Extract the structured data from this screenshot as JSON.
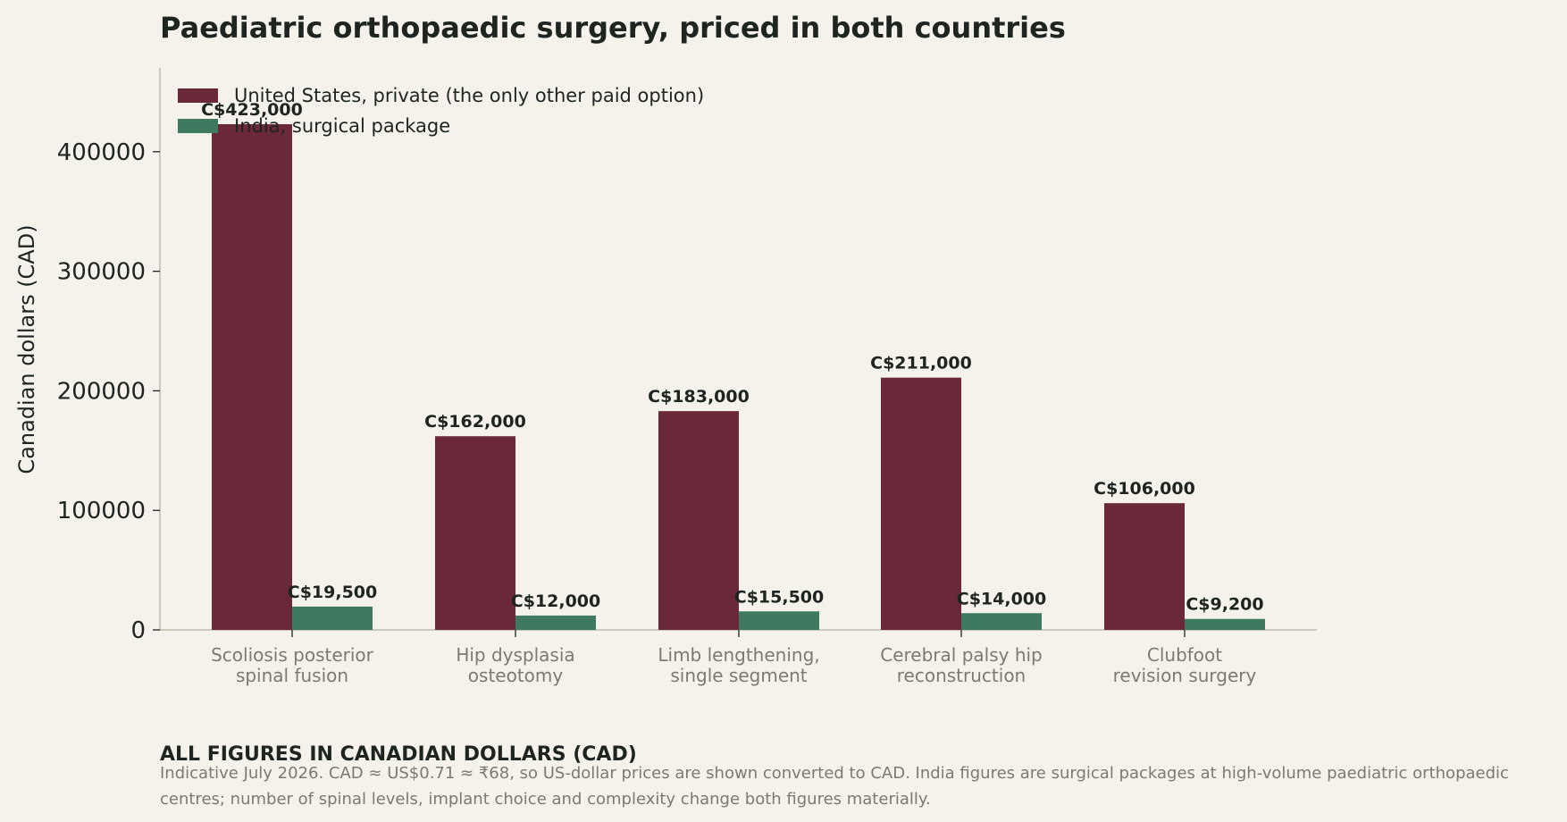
{
  "chart_data": {
    "type": "bar",
    "title": "Paediatric orthopaedic surgery, priced in both countries",
    "xlabel": "",
    "ylabel": "Canadian dollars (CAD)",
    "ylim": [
      0,
      470000
    ],
    "yticks": [
      "0",
      "100000",
      "200000",
      "300000",
      "400000"
    ],
    "ytick_values": [
      0,
      100000,
      200000,
      300000,
      400000
    ],
    "categories": [
      [
        "Scoliosis posterior",
        "spinal fusion"
      ],
      [
        "Hip dysplasia",
        "osteotomy"
      ],
      [
        "Limb lengthening,",
        "single segment"
      ],
      [
        "Cerebral palsy hip",
        "reconstruction"
      ],
      [
        "Clubfoot",
        "revision surgery"
      ]
    ],
    "series": [
      {
        "name": "United States, private (the only other paid option)",
        "color": "#6b2838",
        "values": [
          423000,
          162000,
          183000,
          211000,
          106000
        ],
        "labels": [
          "C$423,000",
          "C$162,000",
          "C$183,000",
          "C$211,000",
          "C$106,000"
        ]
      },
      {
        "name": "India, surgical package",
        "color": "#3d7a5f",
        "values": [
          19500,
          12000,
          15500,
          14000,
          9200
        ],
        "labels": [
          "C$19,500",
          "C$12,000",
          "C$15,500",
          "C$14,000",
          "C$9,200"
        ]
      }
    ],
    "legend_position": "top-left",
    "grid": false
  },
  "footer": {
    "heading": "ALL FIGURES IN CANADIAN DOLLARS (CAD)",
    "note": "Indicative July 2026. CAD ≈ US$0.71 ≈ ₹68, so US-dollar prices are shown converted to CAD. India figures are surgical packages at high-volume paediatric orthopaedic centres; number of spinal levels, implant choice and complexity change both figures materially."
  }
}
